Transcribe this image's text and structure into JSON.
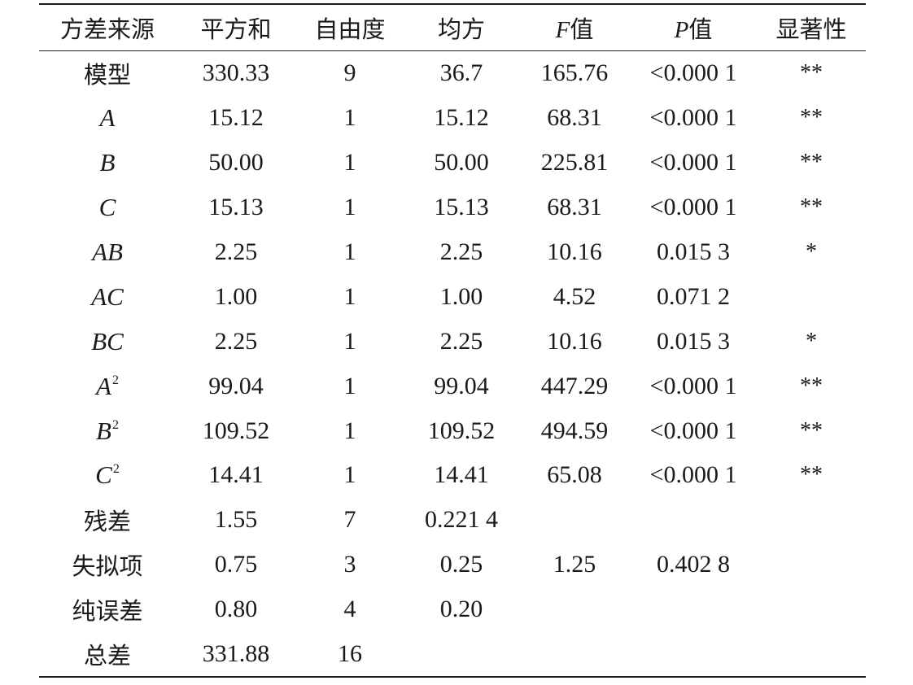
{
  "headers": [
    "方差来源",
    "平方和",
    "自由度",
    "均方",
    "F",
    "值",
    "P",
    "值",
    "显著性"
  ],
  "header_cols": {
    "source": "方差来源",
    "ss": "平方和",
    "df": "自由度",
    "ms": "均方",
    "f_letter": "F",
    "f_suffix": "值",
    "p_letter": "P",
    "p_suffix": "值",
    "sig": "显著性"
  },
  "rows": [
    {
      "source": "模型",
      "ss": "330.33",
      "df": "9",
      "ms": "36.7",
      "f": "165.76",
      "p": "<0.000 1",
      "sig": "**"
    },
    {
      "source": "A",
      "ss": "15.12",
      "df": "1",
      "ms": "15.12",
      "f": "68.31",
      "p": "<0.000 1",
      "sig": "**"
    },
    {
      "source": "B",
      "ss": "50.00",
      "df": "1",
      "ms": "50.00",
      "f": "225.81",
      "p": "<0.000 1",
      "sig": "**"
    },
    {
      "source": "C",
      "ss": "15.13",
      "df": "1",
      "ms": "15.13",
      "f": "68.31",
      "p": "<0.000 1",
      "sig": "**"
    },
    {
      "source": "AB",
      "ss": "2.25",
      "df": "1",
      "ms": "2.25",
      "f": "10.16",
      "p": "0.015 3",
      "sig": "*"
    },
    {
      "source": "AC",
      "ss": "1.00",
      "df": "1",
      "ms": "1.00",
      "f": "4.52",
      "p": "0.071 2",
      "sig": ""
    },
    {
      "source": "BC",
      "ss": "2.25",
      "df": "1",
      "ms": "2.25",
      "f": "10.16",
      "p": "0.015 3",
      "sig": "*"
    },
    {
      "source_base": "A",
      "source_sup": "2",
      "ss": "99.04",
      "df": "1",
      "ms": "99.04",
      "f": "447.29",
      "p": "<0.000 1",
      "sig": "**"
    },
    {
      "source_base": "B",
      "source_sup": "2",
      "ss": "109.52",
      "df": "1",
      "ms": "109.52",
      "f": "494.59",
      "p": "<0.000 1",
      "sig": "**"
    },
    {
      "source_base": "C",
      "source_sup": "2",
      "ss": "14.41",
      "df": "1",
      "ms": "14.41",
      "f": "65.08",
      "p": "<0.000 1",
      "sig": "**"
    },
    {
      "source": "残差",
      "ss": "1.55",
      "df": "7",
      "ms": "0.221 4",
      "f": "",
      "p": "",
      "sig": ""
    },
    {
      "source": "失拟项",
      "ss": "0.75",
      "df": "3",
      "ms": "0.25",
      "f": "1.25",
      "p": "0.402 8",
      "sig": ""
    },
    {
      "source": "纯误差",
      "ss": "0.80",
      "df": "4",
      "ms": "0.20",
      "f": "",
      "p": "",
      "sig": ""
    },
    {
      "source": "总差",
      "ss": "331.88",
      "df": "16",
      "ms": "",
      "f": "",
      "p": "",
      "sig": ""
    }
  ]
}
